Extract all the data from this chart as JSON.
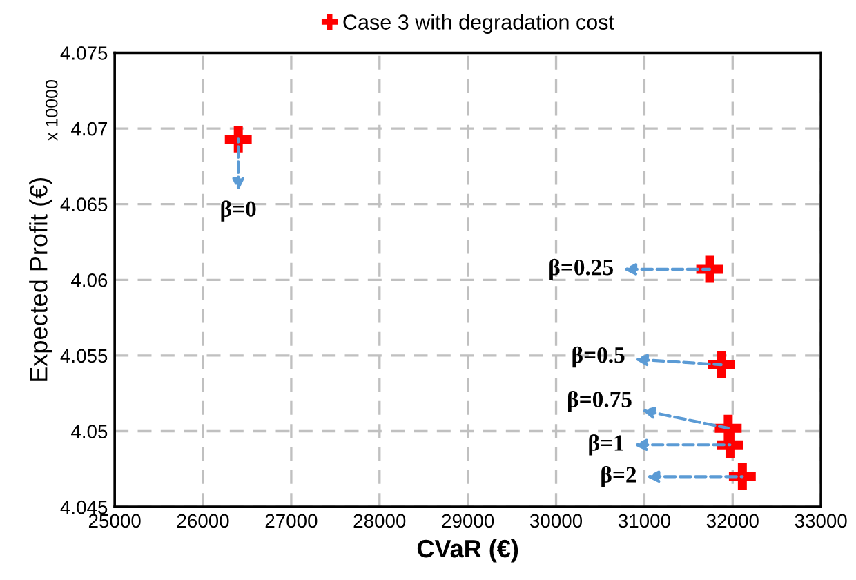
{
  "chart_data": {
    "type": "scatter",
    "xlabel": "CVaR (€)",
    "ylabel": "Expected Profit (€)",
    "x": [
      26400,
      31740,
      31870,
      31950,
      31970,
      32110
    ],
    "series": [
      {
        "name": "Case 3 with degradation cost",
        "color": "#ff0000",
        "values": [
          4.0693,
          4.0607,
          4.0544,
          4.0502,
          4.0491,
          4.047
        ]
      }
    ],
    "annotations": [
      {
        "text": "β=0",
        "x": 26400,
        "y": 4.0693
      },
      {
        "text": "β=0.25",
        "x": 31740,
        "y": 4.0607
      },
      {
        "text": "β=0.5",
        "x": 31870,
        "y": 4.0544
      },
      {
        "text": "β=0.75",
        "x": 31950,
        "y": 4.0502
      },
      {
        "text": "β=1",
        "x": 31970,
        "y": 4.0491
      },
      {
        "text": "β=2",
        "x": 32110,
        "y": 4.047
      },
      "x 10000"
    ],
    "xlim": [
      25000,
      33000
    ],
    "xticks": [
      25000,
      26000,
      27000,
      28000,
      29000,
      30000,
      31000,
      32000,
      33000
    ],
    "ylim": [
      4.045,
      4.075
    ],
    "yticks": [
      4.045,
      4.05,
      4.055,
      4.06,
      4.065,
      4.07,
      4.075
    ],
    "grid": true,
    "legend": "top",
    "marker": "cross"
  }
}
